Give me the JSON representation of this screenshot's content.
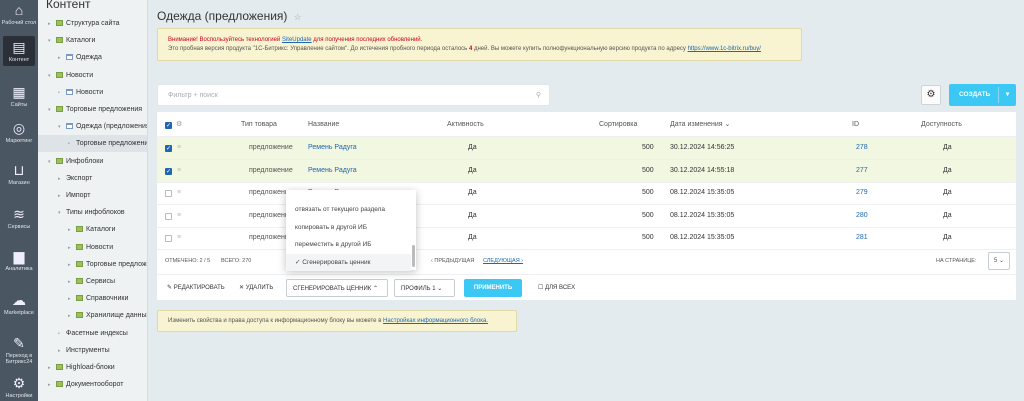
{
  "nav": [
    {
      "label": "Рабочий стол",
      "icon": "home-icon"
    },
    {
      "label": "Контент",
      "icon": "document-icon",
      "active": true
    },
    {
      "label": "Сайты",
      "icon": "calendar-icon"
    },
    {
      "label": "Маркетинг",
      "icon": "target-icon"
    },
    {
      "label": "Магазин",
      "icon": "basket-icon"
    },
    {
      "label": "Сервисы",
      "icon": "layers-icon"
    },
    {
      "label": "Аналитика",
      "icon": "bar-chart-icon"
    },
    {
      "label": "Marketplace",
      "icon": "cloud-download-icon"
    },
    {
      "label": "Переход в Битрикс24",
      "icon": "magic-wand-icon"
    },
    {
      "label": "Настройки",
      "icon": "gear-icon"
    }
  ],
  "tree": {
    "title": "Контент",
    "items": [
      {
        "label": "Структура сайта",
        "level": 0,
        "arrow": "▸"
      },
      {
        "label": "Каталоги",
        "level": 0,
        "arrow": "▾"
      },
      {
        "label": "Одежда",
        "level": 1,
        "arrow": "▸",
        "doc": true
      },
      {
        "label": "Новости",
        "level": 0,
        "arrow": "▾"
      },
      {
        "label": "Новости",
        "level": 1,
        "arrow": "•",
        "doc": true
      },
      {
        "label": "Торговые предложения",
        "level": 0,
        "arrow": "▾"
      },
      {
        "label": "Одежда (предложения)",
        "level": 1,
        "arrow": "▾",
        "doc": true
      },
      {
        "label": "Торговые предложения",
        "level": 2,
        "arrow": "•",
        "noicon": true,
        "selected": true
      },
      {
        "label": "Инфоблоки",
        "level": 0,
        "arrow": "▾"
      },
      {
        "label": "Экспорт",
        "level": 1,
        "arrow": "▸",
        "noicon": true
      },
      {
        "label": "Импорт",
        "level": 1,
        "arrow": "▸",
        "noicon": true
      },
      {
        "label": "Типы инфоблоков",
        "level": 1,
        "arrow": "▾",
        "noicon": true
      },
      {
        "label": "Каталоги",
        "level": 2,
        "arrow": "▸"
      },
      {
        "label": "Новости",
        "level": 2,
        "arrow": "▸"
      },
      {
        "label": "Торговые предложения",
        "level": 2,
        "arrow": "▸"
      },
      {
        "label": "Сервисы",
        "level": 2,
        "arrow": "▸"
      },
      {
        "label": "Справочники",
        "level": 2,
        "arrow": "▸"
      },
      {
        "label": "Хранилище данных",
        "level": 2,
        "arrow": "▸"
      },
      {
        "label": "Фасетные индексы",
        "level": 1,
        "arrow": "•",
        "noicon": true
      },
      {
        "label": "Инструменты",
        "level": 1,
        "arrow": "▸",
        "noicon": true
      },
      {
        "label": "Highload-блоки",
        "level": 0,
        "arrow": "▸"
      },
      {
        "label": "Документооборот",
        "level": 0,
        "arrow": "▸"
      }
    ]
  },
  "page": {
    "title": "Одежда (предложения)"
  },
  "warning": {
    "l1_a": "Внимание! Воспользуйтесь технологией ",
    "l1_link": "SiteUpdate",
    "l1_b": " для получения последних обновлений.",
    "l2_a": "Это пробная версия продукта \"1С-Битрикс: Управление сайтом\". До истечения пробного периода осталось ",
    "days": "4",
    "l2_b": " дней. Вы можете купить полнофункциональную версию продукта по адресу ",
    "l2_link": "https://www.1c-bitrix.ru/buy/"
  },
  "filter": {
    "placeholder": "Фильтр + поиск"
  },
  "create_label": "СОЗДАТЬ",
  "table": {
    "headers": [
      "Тип товара",
      "Название",
      "Активность",
      "Сортировка",
      "Дата изменения ⌄",
      "ID",
      "Доступность"
    ],
    "rows": [
      {
        "type": "предложение",
        "name": "Ремень Радуга",
        "active": "Да",
        "sort": "500",
        "date": "30.12.2024 14:56:25",
        "id": "278",
        "avail": "Да",
        "checked": true
      },
      {
        "type": "предложение",
        "name": "Ремень Радуга",
        "active": "Да",
        "sort": "500",
        "date": "30.12.2024 14:55:18",
        "id": "277",
        "avail": "Да",
        "checked": true
      },
      {
        "type": "предложение",
        "name": "Ремень Радуга",
        "active": "Да",
        "sort": "500",
        "date": "08.12.2024 15:35:05",
        "id": "279",
        "avail": "Да",
        "checked": false
      },
      {
        "type": "предложение",
        "name": "",
        "active": "Да",
        "sort": "500",
        "date": "08.12.2024 15:35:05",
        "id": "280",
        "avail": "Да",
        "checked": false
      },
      {
        "type": "предложение",
        "name": "",
        "active": "Да",
        "sort": "500",
        "date": "08.12.2024 15:35:05",
        "id": "281",
        "avail": "Да",
        "checked": false
      }
    ]
  },
  "footer": {
    "selected": "ОТМЕЧЕНО: 2 / 5",
    "total": "ВСЕГО: 270",
    "prev": "‹ ПРЕДЫДУЩАЯ",
    "next": "СЛЕДУЮЩАЯ ›",
    "per_page_label": "НА СТРАНИЦЕ:",
    "per_page": "5"
  },
  "actions": {
    "edit": "✎ РЕДАКТИРОВАТЬ",
    "delete": "✕ УДАЛИТЬ",
    "action_select": "СГЕНЕРИРОВАТЬ ЦЕННИК",
    "profile": "ПРОФИЛЬ 1",
    "apply": "ПРИМЕНИТЬ",
    "for_all": "ДЛЯ ВСЕХ"
  },
  "dropdown": {
    "items": [
      "отвязать от текущего раздела",
      "копировать в другой ИБ",
      "переместить в другой ИБ",
      "Сгенерировать ценник"
    ],
    "selected": "Сгенерировать ценник"
  },
  "info": {
    "text": "Изменить свойства и права доступа к информационному блоку вы можете в ",
    "link": "Настройках информационного блока."
  }
}
